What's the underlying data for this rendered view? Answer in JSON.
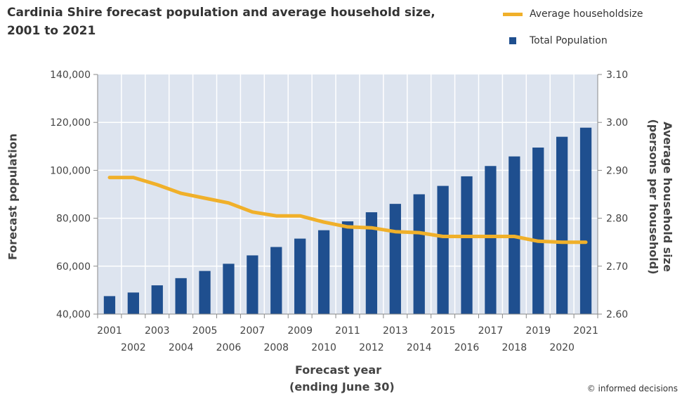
{
  "title_lines": [
    "Cardinia Shire forecast population and average household size,",
    "2001 to 2021"
  ],
  "credit": "© informed decisions",
  "colors": {
    "bar": "#1f4f8f",
    "line": "#f0b02a",
    "plot_bg": "#dde4ef",
    "grid": "#ffffff"
  },
  "chart_data": {
    "type": "bar",
    "categories": [
      "2001",
      "2002",
      "2003",
      "2004",
      "2005",
      "2006",
      "2007",
      "2008",
      "2009",
      "2010",
      "2011",
      "2012",
      "2013",
      "2014",
      "2015",
      "2016",
      "2017",
      "2018",
      "2019",
      "2020",
      "2021"
    ],
    "xlabel_lines": [
      "Forecast year",
      "(ending June 30)"
    ],
    "ylabel": "Forecast population",
    "y2label_lines": [
      "Average household size",
      "(persons per household)"
    ],
    "ylim": [
      40000,
      140000
    ],
    "y2lim": [
      2.6,
      3.1
    ],
    "y_ticks": [
      "40,000",
      "60,000",
      "80,000",
      "100,000",
      "120,000",
      "140,000"
    ],
    "y2_ticks": [
      "2.60",
      "2.70",
      "2.80",
      "2.90",
      "3.00",
      "3.10"
    ],
    "grid": true,
    "legend_position": "top-right",
    "series": [
      {
        "name": "Total Population",
        "type": "bar",
        "axis": "left",
        "values": [
          47500,
          49000,
          52000,
          55000,
          58000,
          61000,
          64500,
          68000,
          71500,
          75000,
          78700,
          82500,
          86000,
          90000,
          93500,
          97500,
          101800,
          105800,
          109500,
          114000,
          117800
        ]
      },
      {
        "name": "Average householdsize",
        "type": "line",
        "axis": "right",
        "values": [
          2.885,
          2.885,
          2.87,
          2.852,
          2.842,
          2.832,
          2.813,
          2.805,
          2.805,
          2.792,
          2.782,
          2.78,
          2.772,
          2.77,
          2.762,
          2.762,
          2.762,
          2.762,
          2.752,
          2.75,
          2.75
        ]
      }
    ]
  }
}
